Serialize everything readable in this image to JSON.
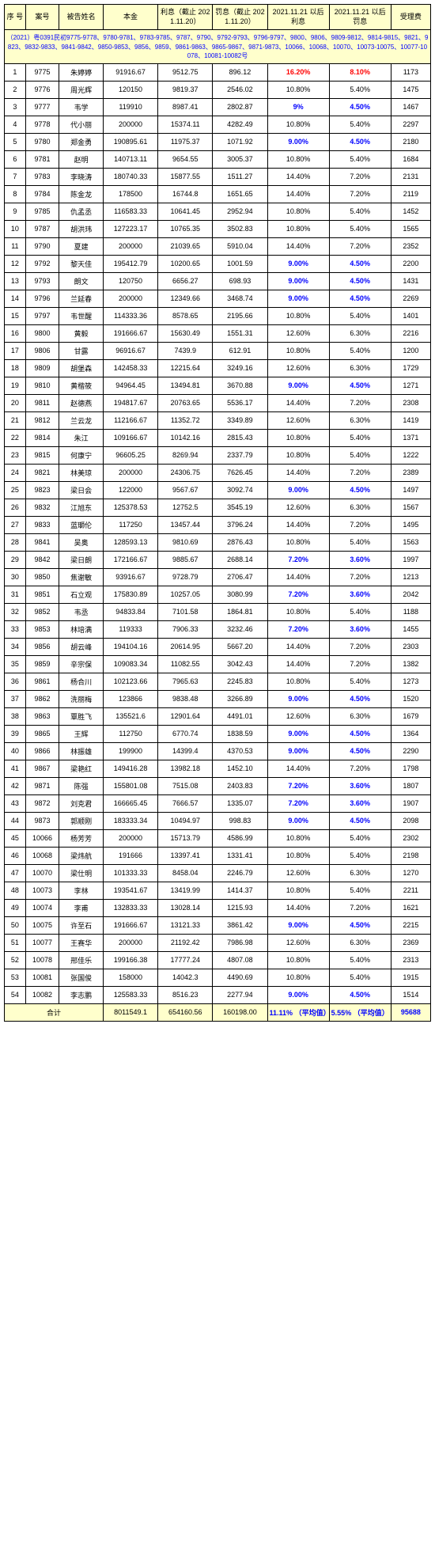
{
  "headers": [
    "序\n号",
    "案号",
    "被告姓名",
    "本金",
    "利息（截止\n2021.11.20）",
    "罚息（截止\n2021.11.20）",
    "2021.11.21\n以后利息",
    "2021.11.21\n以后罚息",
    "受理费"
  ],
  "case_note": "（2021）粤0391民初9775-9778、9780-9781、9783-9785、9787、9790、9792-9793、9796-9797、9800、9806、9809-9812、9814-9815、9821、9823、9832-9833、9841-9842、9850-9853、9856、9859、9861-9863、9865-9867、9871-9873、10066、10068、10070、10073-10075、10077-10078、10081-10082号",
  "rows": [
    {
      "n": 1,
      "a": "9775",
      "b": "朱婷婷",
      "c": "91916.67",
      "d": "9512.75",
      "e": "896.12",
      "f": "16.20%",
      "g": "8.10%",
      "h": "1173",
      "hl": "red"
    },
    {
      "n": 2,
      "a": "9776",
      "b": "周光辉",
      "c": "120150",
      "d": "9819.37",
      "e": "2546.02",
      "f": "10.80%",
      "g": "5.40%",
      "h": "1475",
      "hl": ""
    },
    {
      "n": 3,
      "a": "9777",
      "b": "韦学",
      "c": "119910",
      "d": "8987.41",
      "e": "2802.87",
      "f": "9%",
      "g": "4.50%",
      "h": "1467",
      "hl": "blue"
    },
    {
      "n": 4,
      "a": "9778",
      "b": "代小丽",
      "c": "200000",
      "d": "15374.11",
      "e": "4282.49",
      "f": "10.80%",
      "g": "5.40%",
      "h": "2297",
      "hl": ""
    },
    {
      "n": 5,
      "a": "9780",
      "b": "郑金勇",
      "c": "190895.61",
      "d": "11975.37",
      "e": "1071.92",
      "f": "9.00%",
      "g": "4.50%",
      "h": "2180",
      "hl": "blue"
    },
    {
      "n": 6,
      "a": "9781",
      "b": "赵明",
      "c": "140713.11",
      "d": "9654.55",
      "e": "3005.37",
      "f": "10.80%",
      "g": "5.40%",
      "h": "1684",
      "hl": ""
    },
    {
      "n": 7,
      "a": "9783",
      "b": "李晓涛",
      "c": "180740.33",
      "d": "15877.55",
      "e": "1511.27",
      "f": "14.40%",
      "g": "7.20%",
      "h": "2131",
      "hl": ""
    },
    {
      "n": 8,
      "a": "9784",
      "b": "陈金龙",
      "c": "178500",
      "d": "16744.8",
      "e": "1651.65",
      "f": "14.40%",
      "g": "7.20%",
      "h": "2119",
      "hl": ""
    },
    {
      "n": 9,
      "a": "9785",
      "b": "仇孟丞",
      "c": "116583.33",
      "d": "10641.45",
      "e": "2952.94",
      "f": "10.80%",
      "g": "5.40%",
      "h": "1452",
      "hl": ""
    },
    {
      "n": 10,
      "a": "9787",
      "b": "胡洪玮",
      "c": "127223.17",
      "d": "10765.35",
      "e": "3502.83",
      "f": "10.80%",
      "g": "5.40%",
      "h": "1565",
      "hl": ""
    },
    {
      "n": 11,
      "a": "9790",
      "b": "夏建",
      "c": "200000",
      "d": "21039.65",
      "e": "5910.04",
      "f": "14.40%",
      "g": "7.20%",
      "h": "2352",
      "hl": ""
    },
    {
      "n": 12,
      "a": "9792",
      "b": "黎天佳",
      "c": "195412.79",
      "d": "10200.65",
      "e": "1001.59",
      "f": "9.00%",
      "g": "4.50%",
      "h": "2200",
      "hl": "blue"
    },
    {
      "n": 13,
      "a": "9793",
      "b": "朗文",
      "c": "120750",
      "d": "6656.27",
      "e": "698.93",
      "f": "9.00%",
      "g": "4.50%",
      "h": "1431",
      "hl": "blue"
    },
    {
      "n": 14,
      "a": "9796",
      "b": "兰延春",
      "c": "200000",
      "d": "12349.66",
      "e": "3468.74",
      "f": "9.00%",
      "g": "4.50%",
      "h": "2269",
      "hl": "blue"
    },
    {
      "n": 15,
      "a": "9797",
      "b": "韦世醒",
      "c": "114333.36",
      "d": "8578.65",
      "e": "2195.66",
      "f": "10.80%",
      "g": "5.40%",
      "h": "1401",
      "hl": ""
    },
    {
      "n": 16,
      "a": "9800",
      "b": "黄毅",
      "c": "191666.67",
      "d": "15630.49",
      "e": "1551.31",
      "f": "12.60%",
      "g": "6.30%",
      "h": "2216",
      "hl": ""
    },
    {
      "n": 17,
      "a": "9806",
      "b": "甘露",
      "c": "96916.67",
      "d": "7439.9",
      "e": "612.91",
      "f": "10.80%",
      "g": "5.40%",
      "h": "1200",
      "hl": ""
    },
    {
      "n": 18,
      "a": "9809",
      "b": "胡堡森",
      "c": "142458.33",
      "d": "12215.64",
      "e": "3249.16",
      "f": "12.60%",
      "g": "6.30%",
      "h": "1729",
      "hl": ""
    },
    {
      "n": 19,
      "a": "9810",
      "b": "黄楷筱",
      "c": "94964.45",
      "d": "13494.81",
      "e": "3670.88",
      "f": "9.00%",
      "g": "4.50%",
      "h": "1271",
      "hl": "blue"
    },
    {
      "n": 20,
      "a": "9811",
      "b": "赵德燕",
      "c": "194817.67",
      "d": "20763.65",
      "e": "5536.17",
      "f": "14.40%",
      "g": "7.20%",
      "h": "2308",
      "hl": ""
    },
    {
      "n": 21,
      "a": "9812",
      "b": "兰云龙",
      "c": "112166.67",
      "d": "11352.72",
      "e": "3349.89",
      "f": "12.60%",
      "g": "6.30%",
      "h": "1419",
      "hl": ""
    },
    {
      "n": 22,
      "a": "9814",
      "b": "朱江",
      "c": "109166.67",
      "d": "10142.16",
      "e": "2815.43",
      "f": "10.80%",
      "g": "5.40%",
      "h": "1371",
      "hl": ""
    },
    {
      "n": 23,
      "a": "9815",
      "b": "何康宁",
      "c": "96605.25",
      "d": "8269.94",
      "e": "2337.79",
      "f": "10.80%",
      "g": "5.40%",
      "h": "1222",
      "hl": ""
    },
    {
      "n": 24,
      "a": "9821",
      "b": "林美琼",
      "c": "200000",
      "d": "24306.75",
      "e": "7626.45",
      "f": "14.40%",
      "g": "7.20%",
      "h": "2389",
      "hl": ""
    },
    {
      "n": 25,
      "a": "9823",
      "b": "梁日会",
      "c": "122000",
      "d": "9567.67",
      "e": "3092.74",
      "f": "9.00%",
      "g": "4.50%",
      "h": "1497",
      "hl": "blue"
    },
    {
      "n": 26,
      "a": "9832",
      "b": "江旭东",
      "c": "125378.53",
      "d": "12752.5",
      "e": "3545.19",
      "f": "12.60%",
      "g": "6.30%",
      "h": "1567",
      "hl": ""
    },
    {
      "n": 27,
      "a": "9833",
      "b": "蓝瑡伦",
      "c": "117250",
      "d": "13457.44",
      "e": "3796.24",
      "f": "14.40%",
      "g": "7.20%",
      "h": "1495",
      "hl": ""
    },
    {
      "n": 28,
      "a": "9841",
      "b": "吴奥",
      "c": "128593.13",
      "d": "9810.69",
      "e": "2876.43",
      "f": "10.80%",
      "g": "5.40%",
      "h": "1563",
      "hl": ""
    },
    {
      "n": 29,
      "a": "9842",
      "b": "梁日朗",
      "c": "172166.67",
      "d": "9885.67",
      "e": "2688.14",
      "f": "7.20%",
      "g": "3.60%",
      "h": "1997",
      "hl": "blue"
    },
    {
      "n": 30,
      "a": "9850",
      "b": "焦谢敏",
      "c": "93916.67",
      "d": "9728.79",
      "e": "2706.47",
      "f": "14.40%",
      "g": "7.20%",
      "h": "1213",
      "hl": ""
    },
    {
      "n": 31,
      "a": "9851",
      "b": "石立观",
      "c": "175830.89",
      "d": "10257.05",
      "e": "3080.99",
      "f": "7.20%",
      "g": "3.60%",
      "h": "2042",
      "hl": "blue"
    },
    {
      "n": 32,
      "a": "9852",
      "b": "韦丞",
      "c": "94833.84",
      "d": "7101.58",
      "e": "1864.81",
      "f": "10.80%",
      "g": "5.40%",
      "h": "1188",
      "hl": ""
    },
    {
      "n": 33,
      "a": "9853",
      "b": "林培满",
      "c": "119333",
      "d": "7906.33",
      "e": "3232.46",
      "f": "7.20%",
      "g": "3.60%",
      "h": "1455",
      "hl": "blue"
    },
    {
      "n": 34,
      "a": "9856",
      "b": "胡云峰",
      "c": "194104.16",
      "d": "20614.95",
      "e": "5667.20",
      "f": "14.40%",
      "g": "7.20%",
      "h": "2303",
      "hl": ""
    },
    {
      "n": 35,
      "a": "9859",
      "b": "辛宗保",
      "c": "109083.34",
      "d": "11082.55",
      "e": "3042.43",
      "f": "14.40%",
      "g": "7.20%",
      "h": "1382",
      "hl": ""
    },
    {
      "n": 36,
      "a": "9861",
      "b": "杨合川",
      "c": "102123.66",
      "d": "7965.63",
      "e": "2245.83",
      "f": "10.80%",
      "g": "5.40%",
      "h": "1273",
      "hl": ""
    },
    {
      "n": 37,
      "a": "9862",
      "b": "洗丽梅",
      "c": "123866",
      "d": "9838.48",
      "e": "3266.89",
      "f": "9.00%",
      "g": "4.50%",
      "h": "1520",
      "hl": "blue"
    },
    {
      "n": 38,
      "a": "9863",
      "b": "覃胜飞",
      "c": "135521.6",
      "d": "12901.64",
      "e": "4491.01",
      "f": "12.60%",
      "g": "6.30%",
      "h": "1679",
      "hl": ""
    },
    {
      "n": 39,
      "a": "9865",
      "b": "王辉",
      "c": "112750",
      "d": "6770.74",
      "e": "1838.59",
      "f": "9.00%",
      "g": "4.50%",
      "h": "1364",
      "hl": "blue"
    },
    {
      "n": 40,
      "a": "9866",
      "b": "林振雄",
      "c": "199900",
      "d": "14399.4",
      "e": "4370.53",
      "f": "9.00%",
      "g": "4.50%",
      "h": "2290",
      "hl": "blue"
    },
    {
      "n": 41,
      "a": "9867",
      "b": "梁艳红",
      "c": "149416.28",
      "d": "13982.18",
      "e": "1452.10",
      "f": "14.40%",
      "g": "7.20%",
      "h": "1798",
      "hl": ""
    },
    {
      "n": 42,
      "a": "9871",
      "b": "陈强",
      "c": "155801.08",
      "d": "7515.08",
      "e": "2403.83",
      "f": "7.20%",
      "g": "3.60%",
      "h": "1807",
      "hl": "blue"
    },
    {
      "n": 43,
      "a": "9872",
      "b": "刘克君",
      "c": "166665.45",
      "d": "7666.57",
      "e": "1335.07",
      "f": "7.20%",
      "g": "3.60%",
      "h": "1907",
      "hl": "blue"
    },
    {
      "n": 44,
      "a": "9873",
      "b": "郭顺刚",
      "c": "183333.34",
      "d": "10494.97",
      "e": "998.83",
      "f": "9.00%",
      "g": "4.50%",
      "h": "2098",
      "hl": "blue"
    },
    {
      "n": 45,
      "a": "10066",
      "b": "杨芳芳",
      "c": "200000",
      "d": "15713.79",
      "e": "4586.99",
      "f": "10.80%",
      "g": "5.40%",
      "h": "2302",
      "hl": ""
    },
    {
      "n": 46,
      "a": "10068",
      "b": "梁炜航",
      "c": "191666",
      "d": "13397.41",
      "e": "1331.41",
      "f": "10.80%",
      "g": "5.40%",
      "h": "2198",
      "hl": ""
    },
    {
      "n": 47,
      "a": "10070",
      "b": "梁仕明",
      "c": "101333.33",
      "d": "8458.04",
      "e": "2246.79",
      "f": "12.60%",
      "g": "6.30%",
      "h": "1270",
      "hl": ""
    },
    {
      "n": 48,
      "a": "10073",
      "b": "李林",
      "c": "193541.67",
      "d": "13419.99",
      "e": "1414.37",
      "f": "10.80%",
      "g": "5.40%",
      "h": "2211",
      "hl": ""
    },
    {
      "n": 49,
      "a": "10074",
      "b": "李甫",
      "c": "132833.33",
      "d": "13028.14",
      "e": "1215.93",
      "f": "14.40%",
      "g": "7.20%",
      "h": "1621",
      "hl": ""
    },
    {
      "n": 50,
      "a": "10075",
      "b": "许至石",
      "c": "191666.67",
      "d": "13121.33",
      "e": "3861.42",
      "f": "9.00%",
      "g": "4.50%",
      "h": "2215",
      "hl": "blue"
    },
    {
      "n": 51,
      "a": "10077",
      "b": "王赛华",
      "c": "200000",
      "d": "21192.42",
      "e": "7986.98",
      "f": "12.60%",
      "g": "6.30%",
      "h": "2369",
      "hl": ""
    },
    {
      "n": 52,
      "a": "10078",
      "b": "邢佳乐",
      "c": "199166.38",
      "d": "17777.24",
      "e": "4807.08",
      "f": "10.80%",
      "g": "5.40%",
      "h": "2313",
      "hl": ""
    },
    {
      "n": 53,
      "a": "10081",
      "b": "张国俊",
      "c": "158000",
      "d": "14042.3",
      "e": "4490.69",
      "f": "10.80%",
      "g": "5.40%",
      "h": "1915",
      "hl": ""
    },
    {
      "n": 54,
      "a": "10082",
      "b": "李志鹏",
      "c": "125583.33",
      "d": "8516.23",
      "e": "2277.94",
      "f": "9.00%",
      "g": "4.50%",
      "h": "1514",
      "hl": "blue"
    }
  ],
  "sum": {
    "label": "合计",
    "c": "8011549.1",
    "d": "654160.56",
    "e": "160198.00",
    "f": "11.11%\n（平均值）",
    "g": "5.55%\n（平均值）",
    "h": "95688"
  },
  "colors": {
    "header_bg": "#ffffcc",
    "red": "#ff0000",
    "blue": "#0000ff"
  }
}
